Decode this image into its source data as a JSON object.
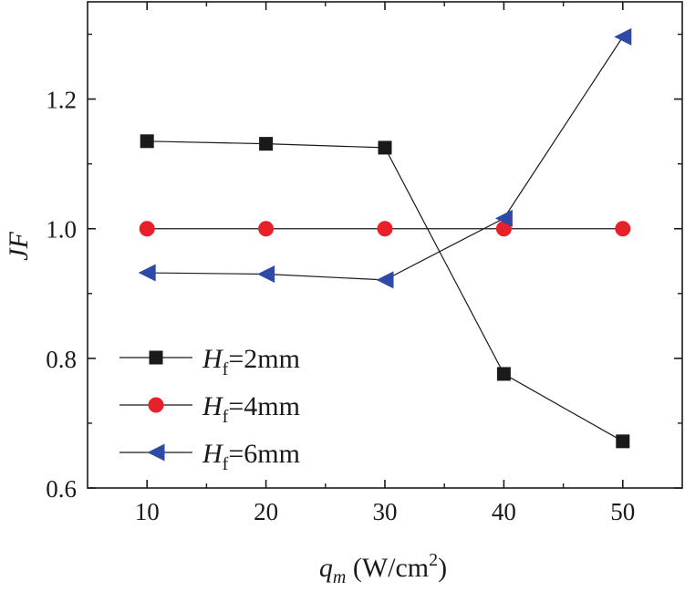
{
  "chart_data": {
    "type": "line",
    "x": [
      10,
      20,
      30,
      40,
      50
    ],
    "xlim": [
      5,
      55
    ],
    "ylim": [
      0.6,
      1.35
    ],
    "xticks": [
      10,
      20,
      30,
      40,
      50
    ],
    "yticks": [
      0.6,
      0.8,
      1.0,
      1.2
    ],
    "xtick_labels": [
      "10",
      "20",
      "30",
      "40",
      "50"
    ],
    "ytick_labels": [
      "0.6",
      "0.8",
      "1.0",
      "1.2"
    ],
    "xlabel": {
      "var": "q",
      "sub": "m",
      "unit_open": " (W/cm",
      "sup": "2",
      "unit_close": ")"
    },
    "ylabel": "JF",
    "series": [
      {
        "name": "Hf=2mm",
        "legend_var": "H",
        "legend_sub": "f",
        "legend_value": "=2mm",
        "marker": "square",
        "color": "#1a1a1a",
        "values": [
          1.135,
          1.131,
          1.125,
          0.776,
          0.672
        ]
      },
      {
        "name": "Hf=4mm",
        "legend_var": "H",
        "legend_sub": "f",
        "legend_value": "=4mm",
        "marker": "circle",
        "color": "#e8202a",
        "values": [
          1.0,
          1.0,
          1.0,
          1.0,
          1.0
        ]
      },
      {
        "name": "Hf=6mm",
        "legend_var": "H",
        "legend_sub": "f",
        "legend_value": "=6mm",
        "marker": "triangle-left",
        "color": "#2e4aa6",
        "values": [
          0.932,
          0.93,
          0.921,
          1.016,
          1.296
        ]
      }
    ],
    "legend_position": "lower-left",
    "grid": false
  }
}
